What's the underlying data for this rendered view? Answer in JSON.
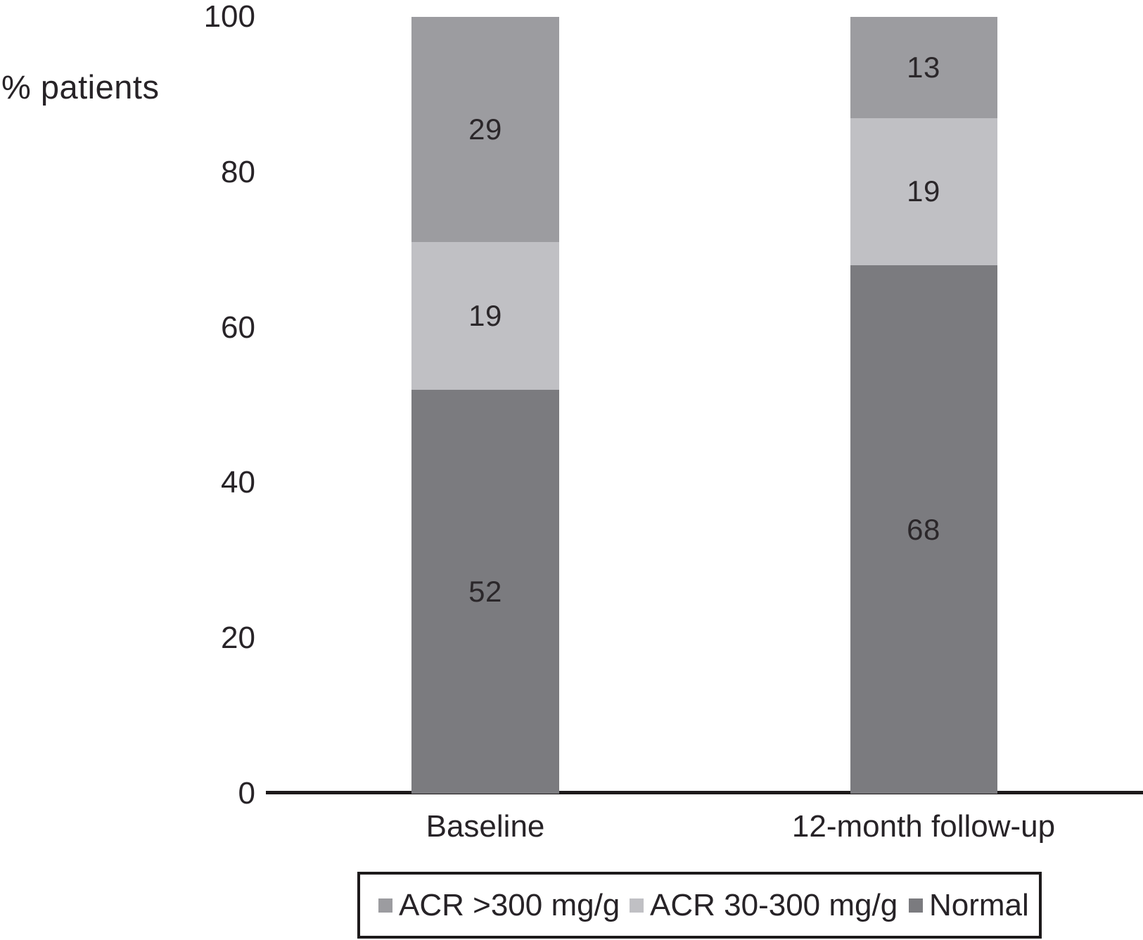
{
  "chart_data": {
    "type": "bar",
    "stacked": true,
    "title": "",
    "xlabel": "",
    "ylabel": "% patients",
    "categories": [
      "Baseline",
      "12-month follow-up"
    ],
    "series": [
      {
        "name": "ACR >300 mg/g",
        "color": "#9c9ca0",
        "values": [
          29,
          13
        ]
      },
      {
        "name": "ACR 30-300 mg/g",
        "color": "#c0c0c4",
        "values": [
          19,
          19
        ]
      },
      {
        "name": "Normal",
        "color": "#7b7b7f",
        "values": [
          52,
          68
        ]
      }
    ],
    "ylim": [
      0,
      100
    ],
    "yticks": [
      0,
      20,
      40,
      60,
      80,
      100
    ],
    "grid": false,
    "legend_position": "bottom",
    "value_label_color": "#2b272a",
    "axis_color": "#1d1a1b",
    "background_color": "#ffffff"
  }
}
